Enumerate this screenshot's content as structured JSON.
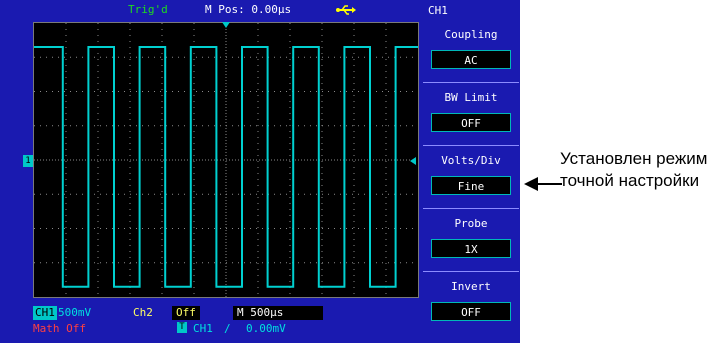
{
  "header": {
    "trigger_status": "Trig'd",
    "m_pos": "M Pos: 0.00µs",
    "usb_icon": "usb-icon"
  },
  "menu": {
    "title": "CH1",
    "items": [
      {
        "label": "Coupling",
        "value": "AC"
      },
      {
        "label": "BW  Limit",
        "value": "OFF"
      },
      {
        "label": "Volts/Div",
        "value": "Fine"
      },
      {
        "label": "Probe",
        "value": "1X"
      },
      {
        "label": "Invert",
        "value": "OFF"
      }
    ]
  },
  "status": {
    "ch1_tag": "CH1",
    "ch1_scale": "500mV",
    "ch2_label": "Ch2",
    "ch2_value": "Off",
    "time_base": "M 500µs",
    "math": "Math Off",
    "trig_tag": "T",
    "trig_source": "CH1",
    "trig_slope": "∕",
    "trig_level": "0.00mV"
  },
  "markers": {
    "ch1": "1"
  },
  "waveform": {
    "color": "#00d0d0",
    "high_div": 3.3,
    "low_div": -3.7,
    "period_div": 1.6,
    "first_edge_div": 0.9,
    "divisions_x": 12,
    "divisions_y": 8
  },
  "annotation": {
    "text": "Установлен режим точной настройки"
  },
  "colors": {
    "panel": "#1a1ab0",
    "grid": "#8a8a8a",
    "trace": "#00d0d0"
  }
}
